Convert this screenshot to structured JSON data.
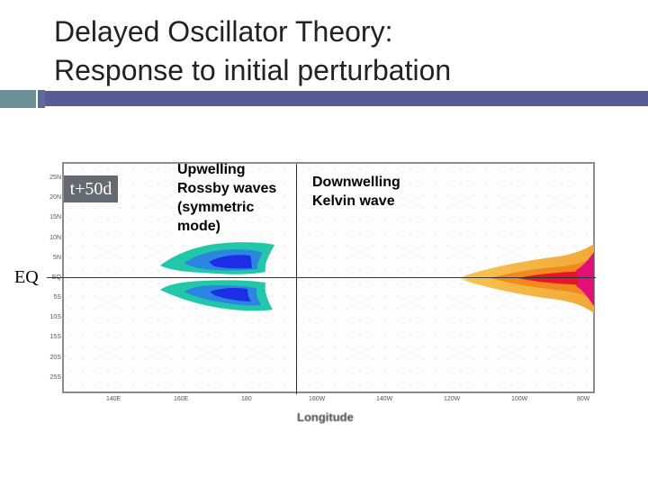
{
  "title": {
    "line1": "Delayed Oscillator Theory:",
    "line2": "Response to initial perturbation"
  },
  "time_label": "t+50d",
  "eq_label": "EQ",
  "annotations": {
    "rossby": [
      "Upwelling",
      "Rossby waves",
      "(symmetric",
      "mode)"
    ],
    "kelvin": [
      "Downwelling",
      "Kelvin wave"
    ]
  },
  "axes": {
    "x_label": "Longitude",
    "y_ticks": [
      "25N",
      "20N",
      "15N",
      "10N",
      "5N",
      "EQ",
      "5S",
      "10S",
      "15S",
      "20S",
      "25S"
    ],
    "x_ticks": [
      "140E",
      "160E",
      "180",
      "160W",
      "140W",
      "120W",
      "100W",
      "80W"
    ]
  },
  "colors": {
    "rossby_outer": "#22c7a9",
    "rossby_mid": "#2a86e0",
    "rossby_core": "#1e2ee6",
    "kelvin_outer": "#f7c04a",
    "kelvin_mid": "#f08a1e",
    "kelvin_core": "#e8142a",
    "kelvin_edge": "#e0107a",
    "header_bar": "#5a5a96"
  }
}
